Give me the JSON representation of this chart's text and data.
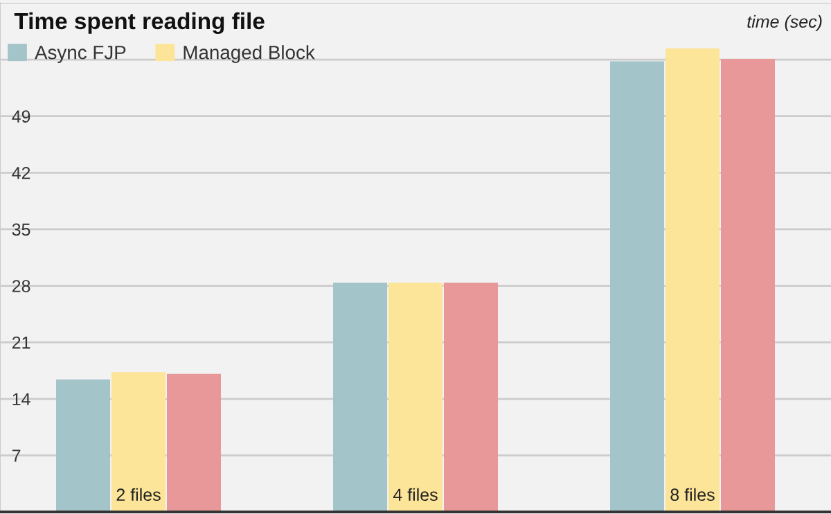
{
  "chart_data": {
    "type": "bar",
    "title": "Time spent reading file",
    "ylabel": "time (sec)",
    "categories": [
      "2 files",
      "4 files",
      "8 files"
    ],
    "series": [
      {
        "name": "Async FJP",
        "color": "#a3c4c9",
        "values": [
          16.4,
          28.4,
          55.8
        ]
      },
      {
        "name": "Managed Block",
        "color": "#fce498",
        "values": [
          17.3,
          28.4,
          57.4
        ]
      },
      {
        "color": "#e99899",
        "values": [
          17.1,
          28.4,
          56.1
        ]
      }
    ],
    "ylim": [
      0,
      63
    ],
    "yticks": [
      {
        "value": 0,
        "label": null
      },
      7,
      14,
      21,
      28,
      35,
      42,
      49,
      {
        "value": 56,
        "label": null
      },
      {
        "value": 63,
        "label": null
      }
    ],
    "grid": "y",
    "legend": "top left"
  }
}
